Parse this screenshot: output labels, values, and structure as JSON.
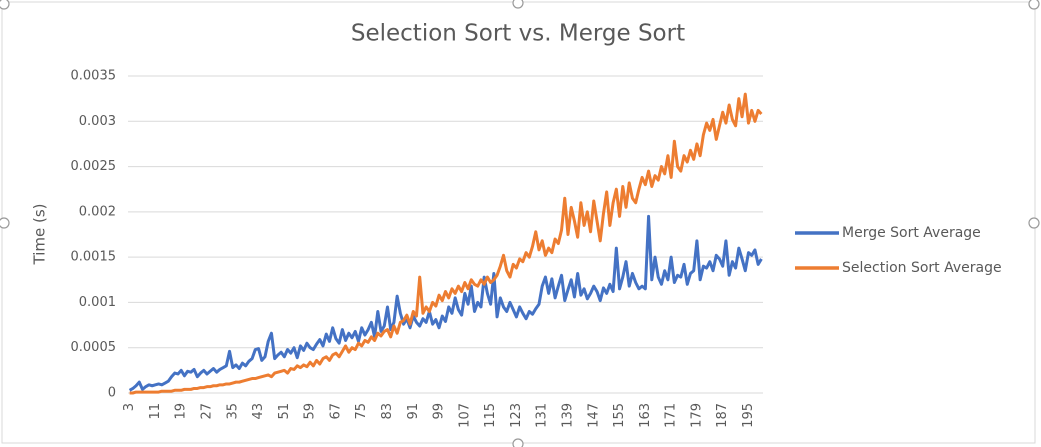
{
  "chart_data": {
    "type": "line",
    "title": "Selection Sort vs. Merge Sort",
    "y_label": "Time (s)",
    "categories": [
      "3",
      null,
      null,
      null,
      null,
      null,
      null,
      null,
      "11",
      null,
      null,
      null,
      null,
      null,
      null,
      null,
      "19",
      null,
      null,
      null,
      null,
      null,
      null,
      null,
      "27",
      null,
      null,
      null,
      null,
      null,
      null,
      null,
      "35",
      null,
      null,
      null,
      null,
      null,
      null,
      null,
      "43",
      null,
      null,
      null,
      null,
      null,
      null,
      null,
      "51",
      null,
      null,
      null,
      null,
      null,
      null,
      null,
      "59",
      null,
      null,
      null,
      null,
      null,
      null,
      null,
      "67",
      null,
      null,
      null,
      null,
      null,
      null,
      null,
      "75",
      null,
      null,
      null,
      null,
      null,
      null,
      null,
      "83",
      null,
      null,
      null,
      null,
      null,
      null,
      null,
      "91",
      null,
      null,
      null,
      null,
      null,
      null,
      null,
      "99",
      null,
      null,
      null,
      null,
      null,
      null,
      null,
      "107",
      null,
      null,
      null,
      null,
      null,
      null,
      null,
      "115",
      null,
      null,
      null,
      null,
      null,
      null,
      null,
      "123",
      null,
      null,
      null,
      null,
      null,
      null,
      null,
      "131",
      null,
      null,
      null,
      null,
      null,
      null,
      null,
      "139",
      null,
      null,
      null,
      null,
      null,
      null,
      null,
      "147",
      null,
      null,
      null,
      null,
      null,
      null,
      null,
      "155",
      null,
      null,
      null,
      null,
      null,
      null,
      null,
      "163",
      null,
      null,
      null,
      null,
      null,
      null,
      null,
      "171",
      null,
      null,
      null,
      null,
      null,
      null,
      null,
      "179",
      null,
      null,
      null,
      null,
      null,
      null,
      null,
      "187",
      null,
      null,
      null,
      null,
      null,
      null,
      null,
      "195",
      null,
      null,
      null,
      null
    ],
    "series": [
      {
        "name": "Merge Sort Average",
        "color": "#4472c4",
        "values": [
          3e-05,
          5e-05,
          8e-05,
          0.00012,
          4e-05,
          7e-05,
          9e-05,
          8e-05,
          9e-05,
          0.0001,
          9e-05,
          0.00011,
          0.00013,
          0.00018,
          0.00022,
          0.00021,
          0.00025,
          0.00019,
          0.00024,
          0.00023,
          0.00026,
          0.00018,
          0.00022,
          0.00025,
          0.00021,
          0.00024,
          0.00027,
          0.00023,
          0.00026,
          0.00028,
          0.0003,
          0.00046,
          0.00028,
          0.00031,
          0.00027,
          0.00033,
          0.0003,
          0.00035,
          0.00038,
          0.00048,
          0.00049,
          0.00036,
          0.0004,
          0.00057,
          0.00066,
          0.00038,
          0.00042,
          0.00045,
          0.0004,
          0.00048,
          0.00044,
          0.0005,
          0.00039,
          0.00052,
          0.00047,
          0.00055,
          0.0005,
          0.00048,
          0.00054,
          0.00059,
          0.00052,
          0.00065,
          0.00057,
          0.00072,
          0.0006,
          0.00055,
          0.0007,
          0.00058,
          0.00066,
          0.00061,
          0.00068,
          0.00057,
          0.00072,
          0.00064,
          0.0007,
          0.00078,
          0.00062,
          0.0009,
          0.00068,
          0.00074,
          0.00095,
          0.0007,
          0.00078,
          0.00107,
          0.00088,
          0.00076,
          0.00082,
          0.00072,
          0.00085,
          0.00078,
          0.00074,
          0.00082,
          0.00078,
          0.0009,
          0.00076,
          0.00081,
          0.00072,
          0.00085,
          0.00079,
          0.00095,
          0.00088,
          0.00105,
          0.00092,
          0.00086,
          0.0011,
          0.00098,
          0.00118,
          0.0009,
          0.001,
          0.00095,
          0.00128,
          0.0011,
          0.00098,
          0.00132,
          0.00084,
          0.00105,
          0.00095,
          0.0009,
          0.001,
          0.00092,
          0.00084,
          0.00095,
          0.00088,
          0.00082,
          0.0009,
          0.00087,
          0.00093,
          0.00098,
          0.00118,
          0.00128,
          0.0011,
          0.00126,
          0.00105,
          0.00118,
          0.0013,
          0.00102,
          0.00114,
          0.00125,
          0.00106,
          0.00132,
          0.00108,
          0.00115,
          0.00104,
          0.0011,
          0.00118,
          0.00112,
          0.00102,
          0.00116,
          0.0011,
          0.0012,
          0.00112,
          0.0016,
          0.00115,
          0.00128,
          0.00145,
          0.00118,
          0.00132,
          0.00122,
          0.00115,
          0.00118,
          0.00115,
          0.00195,
          0.00125,
          0.0015,
          0.00128,
          0.0012,
          0.00135,
          0.00125,
          0.0015,
          0.00122,
          0.0013,
          0.00128,
          0.00142,
          0.0012,
          0.00132,
          0.00135,
          0.00168,
          0.00125,
          0.0014,
          0.00138,
          0.00145,
          0.00135,
          0.00152,
          0.00148,
          0.0014,
          0.00168,
          0.0013,
          0.00145,
          0.00138,
          0.0016,
          0.00148,
          0.00135,
          0.00155,
          0.00152,
          0.00158,
          0.00142,
          0.00148
        ]
      },
      {
        "name": "Selection Sort Average",
        "color": "#ed7d31",
        "values": [
          0,
          0,
          1e-05,
          1e-05,
          1e-05,
          1e-05,
          1e-05,
          1e-05,
          1e-05,
          1e-05,
          2e-05,
          2e-05,
          2e-05,
          2e-05,
          3e-05,
          3e-05,
          3e-05,
          4e-05,
          4e-05,
          4e-05,
          5e-05,
          5e-05,
          6e-05,
          6e-05,
          7e-05,
          7e-05,
          8e-05,
          8e-05,
          9e-05,
          9e-05,
          0.0001,
          0.0001,
          0.00011,
          0.00012,
          0.00012,
          0.00013,
          0.00014,
          0.00015,
          0.00016,
          0.00016,
          0.00017,
          0.00018,
          0.00019,
          0.0002,
          0.00018,
          0.00022,
          0.00023,
          0.00024,
          0.00025,
          0.00022,
          0.00027,
          0.00026,
          0.0003,
          0.00028,
          0.00031,
          0.00029,
          0.00034,
          0.0003,
          0.00036,
          0.00032,
          0.00038,
          0.0004,
          0.00036,
          0.00042,
          0.00044,
          0.0004,
          0.00046,
          0.00052,
          0.00045,
          0.0005,
          0.00048,
          0.00055,
          0.00052,
          0.00058,
          0.00056,
          0.00062,
          0.00058,
          0.00066,
          0.00063,
          0.00068,
          0.0007,
          0.00062,
          0.00074,
          0.00066,
          0.00078,
          0.0008,
          0.00086,
          0.00076,
          0.0009,
          0.00085,
          0.00128,
          0.00088,
          0.00095,
          0.0009,
          0.001,
          0.00096,
          0.00108,
          0.00102,
          0.00112,
          0.00105,
          0.00115,
          0.0011,
          0.00118,
          0.00112,
          0.00122,
          0.00115,
          0.00125,
          0.0012,
          0.00118,
          0.00125,
          0.0012,
          0.00128,
          0.00122,
          0.00125,
          0.0013,
          0.0014,
          0.00152,
          0.00135,
          0.00128,
          0.00142,
          0.00138,
          0.00148,
          0.00145,
          0.00155,
          0.0015,
          0.00162,
          0.00178,
          0.00158,
          0.00168,
          0.00152,
          0.0016,
          0.00155,
          0.0017,
          0.00165,
          0.0018,
          0.00215,
          0.00175,
          0.00205,
          0.0019,
          0.00172,
          0.0021,
          0.00185,
          0.002,
          0.00178,
          0.00212,
          0.0019,
          0.00168,
          0.00198,
          0.00222,
          0.00185,
          0.0021,
          0.00225,
          0.00195,
          0.00228,
          0.00205,
          0.00232,
          0.00215,
          0.0021,
          0.00225,
          0.00238,
          0.0023,
          0.00245,
          0.00228,
          0.0024,
          0.00235,
          0.0025,
          0.00242,
          0.00262,
          0.00238,
          0.00278,
          0.0025,
          0.00245,
          0.00262,
          0.00255,
          0.00268,
          0.00258,
          0.00275,
          0.00262,
          0.00285,
          0.00298,
          0.0029,
          0.00302,
          0.0028,
          0.00295,
          0.0031,
          0.00298,
          0.00318,
          0.00302,
          0.00295,
          0.00325,
          0.00305,
          0.0033,
          0.00298,
          0.00312,
          0.003,
          0.00312,
          0.00308
        ]
      }
    ],
    "ylim": [
      0,
      0.0035
    ],
    "yticks": [
      0,
      0.0005,
      0.001,
      0.0015,
      0.002,
      0.0025,
      0.003,
      0.0035
    ],
    "grid": true,
    "legend": "right"
  }
}
